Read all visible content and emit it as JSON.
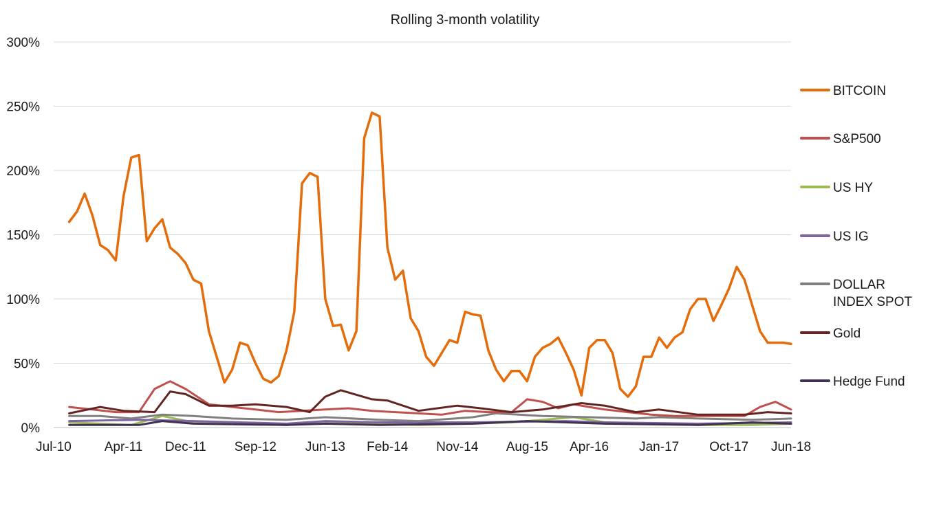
{
  "chart_data": {
    "type": "line",
    "title": "Rolling 3-month volatility",
    "xlabel": "",
    "ylabel": "",
    "y_tick_labels": [
      "0%",
      "50%",
      "100%",
      "150%",
      "200%",
      "250%",
      "300%"
    ],
    "y_ticks": [
      0,
      50,
      100,
      150,
      200,
      250,
      300
    ],
    "ylim": [
      0,
      300
    ],
    "x_tick_labels": [
      "Jul-10",
      "Apr-11",
      "Dec-11",
      "Sep-12",
      "Jun-13",
      "Feb-14",
      "Nov-14",
      "Aug-15",
      "Apr-16",
      "Jan-17",
      "Oct-17",
      "Jun-18"
    ],
    "x_ticks": [
      "2010-07",
      "2011-04",
      "2011-12",
      "2012-09",
      "2013-06",
      "2014-02",
      "2014-11",
      "2015-08",
      "2016-04",
      "2017-01",
      "2017-10",
      "2018-06"
    ],
    "xlim": [
      "2010-07",
      "2018-06"
    ],
    "grid": true,
    "legend_position": "right",
    "series": [
      {
        "name": "BITCOIN",
        "color": "#E46C0A",
        "x": [
          "2010-09",
          "2010-10",
          "2010-11",
          "2010-12",
          "2011-01",
          "2011-02",
          "2011-03",
          "2011-04",
          "2011-05",
          "2011-06",
          "2011-07",
          "2011-08",
          "2011-09",
          "2011-10",
          "2011-11",
          "2011-12",
          "2012-01",
          "2012-02",
          "2012-03",
          "2012-04",
          "2012-05",
          "2012-06",
          "2012-07",
          "2012-08",
          "2012-09",
          "2012-10",
          "2012-11",
          "2012-12",
          "2013-01",
          "2013-02",
          "2013-03",
          "2013-04",
          "2013-05",
          "2013-06",
          "2013-07",
          "2013-08",
          "2013-09",
          "2013-10",
          "2013-11",
          "2013-12",
          "2014-01",
          "2014-02",
          "2014-03",
          "2014-04",
          "2014-05",
          "2014-06",
          "2014-07",
          "2014-08",
          "2014-09",
          "2014-10",
          "2014-11",
          "2014-12",
          "2015-01",
          "2015-02",
          "2015-03",
          "2015-04",
          "2015-05",
          "2015-06",
          "2015-07",
          "2015-08",
          "2015-09",
          "2015-10",
          "2015-11",
          "2015-12",
          "2016-01",
          "2016-02",
          "2016-03",
          "2016-04",
          "2016-05",
          "2016-06",
          "2016-07",
          "2016-08",
          "2016-09",
          "2016-10",
          "2016-11",
          "2016-12",
          "2017-01",
          "2017-02",
          "2017-03",
          "2017-04",
          "2017-05",
          "2017-06",
          "2017-07",
          "2017-08",
          "2017-09",
          "2017-10",
          "2017-11",
          "2017-12",
          "2018-01",
          "2018-02",
          "2018-03",
          "2018-04",
          "2018-05",
          "2018-06"
        ],
        "values": [
          160,
          168,
          182,
          165,
          142,
          138,
          130,
          180,
          210,
          212,
          145,
          155,
          162,
          140,
          135,
          128,
          115,
          112,
          75,
          55,
          35,
          45,
          66,
          64,
          50,
          38,
          35,
          40,
          60,
          90,
          190,
          198,
          195,
          100,
          79,
          80,
          60,
          75,
          225,
          245,
          242,
          140,
          115,
          122,
          85,
          75,
          55,
          48,
          58,
          68,
          66,
          90,
          88,
          87,
          60,
          45,
          36,
          44,
          44,
          36,
          55,
          62,
          65,
          70,
          58,
          45,
          25,
          62,
          68,
          68,
          58,
          30,
          24,
          32,
          55,
          55,
          70,
          62,
          70,
          74,
          92,
          100,
          100,
          83,
          95,
          108,
          125,
          115,
          95,
          75,
          66,
          66,
          66,
          65
        ]
      },
      {
        "name": "S&P500",
        "color": "#C0504D",
        "x": [
          "2010-09",
          "2010-12",
          "2011-03",
          "2011-06",
          "2011-08",
          "2011-10",
          "2011-12",
          "2012-03",
          "2012-06",
          "2012-09",
          "2012-12",
          "2013-03",
          "2013-06",
          "2013-09",
          "2013-12",
          "2014-03",
          "2014-06",
          "2014-09",
          "2014-12",
          "2015-03",
          "2015-06",
          "2015-08",
          "2015-10",
          "2015-12",
          "2016-02",
          "2016-04",
          "2016-06",
          "2016-09",
          "2016-12",
          "2017-03",
          "2017-06",
          "2017-09",
          "2017-12",
          "2018-02",
          "2018-04",
          "2018-06"
        ],
        "values": [
          16,
          14,
          12,
          12,
          30,
          36,
          30,
          18,
          16,
          14,
          12,
          13,
          14,
          15,
          13,
          12,
          11,
          10,
          13,
          12,
          12,
          22,
          20,
          15,
          18,
          16,
          14,
          12,
          10,
          9,
          9,
          9,
          9,
          16,
          20,
          14
        ]
      },
      {
        "name": "US HY",
        "color": "#9BBB59",
        "x": [
          "2010-09",
          "2011-01",
          "2011-05",
          "2011-09",
          "2012-01",
          "2012-06",
          "2013-01",
          "2013-06",
          "2014-01",
          "2014-06",
          "2015-01",
          "2015-06",
          "2015-10",
          "2016-02",
          "2016-06",
          "2017-01",
          "2017-06",
          "2018-01",
          "2018-06"
        ],
        "values": [
          4,
          3,
          2,
          9,
          4,
          3,
          2,
          4,
          3,
          2,
          3,
          4,
          6,
          8,
          4,
          3,
          2,
          2,
          3
        ]
      },
      {
        "name": "US IG",
        "color": "#8064A2",
        "x": [
          "2010-09",
          "2011-06",
          "2012-01",
          "2013-01",
          "2013-06",
          "2014-01",
          "2015-01",
          "2016-01",
          "2016-06",
          "2017-06",
          "2018-06"
        ],
        "values": [
          5,
          6,
          5,
          3,
          5,
          4,
          4,
          5,
          4,
          3,
          4
        ]
      },
      {
        "name": "DOLLAR INDEX SPOT",
        "color": "#808080",
        "x": [
          "2010-09",
          "2011-01",
          "2011-05",
          "2011-09",
          "2012-01",
          "2012-06",
          "2013-01",
          "2013-06",
          "2014-01",
          "2014-06",
          "2015-01",
          "2015-04",
          "2015-10",
          "2016-04",
          "2016-10",
          "2017-01",
          "2017-06",
          "2018-01",
          "2018-06"
        ],
        "values": [
          9,
          9,
          7,
          10,
          9,
          7,
          6,
          8,
          6,
          5,
          8,
          11,
          9,
          8,
          7,
          8,
          7,
          6,
          7
        ]
      },
      {
        "name": "Gold",
        "color": "#632523",
        "x": [
          "2010-09",
          "2011-01",
          "2011-04",
          "2011-08",
          "2011-10",
          "2011-12",
          "2012-03",
          "2012-06",
          "2012-09",
          "2013-01",
          "2013-04",
          "2013-06",
          "2013-08",
          "2013-12",
          "2014-02",
          "2014-06",
          "2014-11",
          "2015-02",
          "2015-06",
          "2015-10",
          "2016-03",
          "2016-06",
          "2016-10",
          "2017-01",
          "2017-06",
          "2017-12",
          "2018-03",
          "2018-06"
        ],
        "values": [
          11,
          16,
          13,
          12,
          28,
          26,
          17,
          17,
          18,
          16,
          12,
          24,
          29,
          22,
          21,
          13,
          17,
          15,
          12,
          14,
          19,
          17,
          12,
          14,
          10,
          10,
          12,
          11
        ]
      },
      {
        "name": "Hedge Fund",
        "color": "#403151",
        "x": [
          "2010-09",
          "2011-06",
          "2011-09",
          "2012-01",
          "2013-01",
          "2013-06",
          "2014-01",
          "2015-01",
          "2015-08",
          "2016-01",
          "2016-06",
          "2017-06",
          "2018-01",
          "2018-06"
        ],
        "values": [
          2,
          2,
          5,
          3,
          2,
          3,
          2,
          3,
          5,
          4,
          3,
          2,
          4,
          3
        ]
      }
    ]
  }
}
